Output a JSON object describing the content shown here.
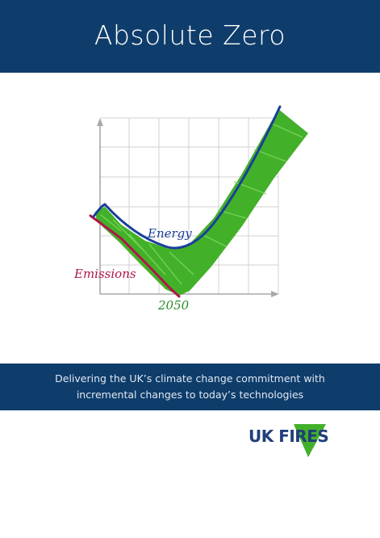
{
  "header": {
    "title": "Absolute Zero"
  },
  "figure": {
    "energy_label": "Energy",
    "emissions_label": "Emissions",
    "year_label": "2050",
    "colors": {
      "energy": "#1a3f9a",
      "emissions": "#b0154a",
      "tick_fill": "#43b02a",
      "grid": "#d0d0d0",
      "axis": "#a9a9a9"
    }
  },
  "banner": {
    "line1": "Delivering the UK’s climate change commitment with",
    "line2": "incremental changes to today’s technologies"
  },
  "logo": {
    "text": "UK FIRES",
    "icon": "green-triangle-icon",
    "accent_color": "#43b02a",
    "text_color": "#1f3f7a"
  }
}
